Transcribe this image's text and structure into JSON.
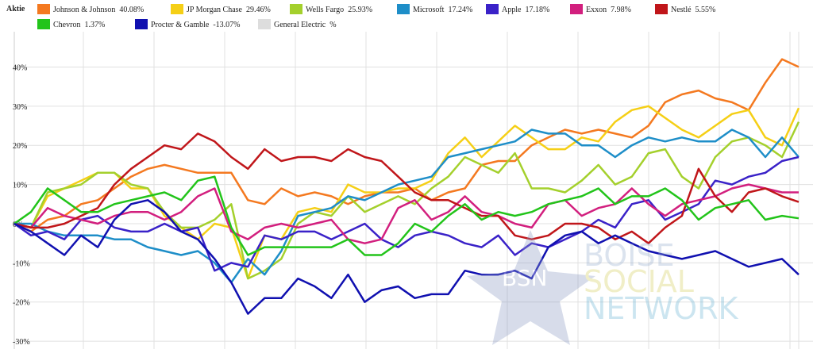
{
  "chart_data": {
    "type": "line",
    "legend_title": "Aktie",
    "ylim": [
      -32,
      49
    ],
    "yticks": [
      {
        "value": -30,
        "label": "-30%"
      },
      {
        "value": -20,
        "label": "-20%"
      },
      {
        "value": -10,
        "label": "-10%"
      },
      {
        "value": 0,
        "label": "0%"
      },
      {
        "value": 10,
        "label": "10%"
      },
      {
        "value": 20,
        "label": "20%"
      },
      {
        "value": 30,
        "label": "30%"
      },
      {
        "value": 40,
        "label": "40%"
      }
    ],
    "grid": true,
    "watermark": {
      "badge": "BSN",
      "line1": "BOISE",
      "line2": "SOCIAL",
      "line3": "NETWORK"
    },
    "series": [
      {
        "name": "Johnson & Johnson",
        "change": {
          "value": 40.08,
          "label": "40.08%"
        },
        "color": "#f47920",
        "values": [
          0,
          -2,
          1,
          2,
          5,
          6,
          9,
          12,
          14,
          15,
          14,
          13,
          13,
          13,
          6,
          5,
          9,
          7,
          8,
          7,
          5,
          7,
          8,
          8,
          9,
          6,
          8,
          9,
          15,
          16,
          16,
          20,
          22,
          24,
          23,
          24,
          23,
          22,
          25,
          31,
          33,
          34,
          32,
          31,
          29,
          36,
          42,
          40
        ]
      },
      {
        "name": "JP Morgan Chase",
        "change": {
          "value": 29.46,
          "label": "29.46%"
        },
        "color": "#f5cf16",
        "values": [
          0,
          -1,
          7,
          9,
          11,
          13,
          13,
          9,
          9,
          2,
          -1,
          -4,
          0,
          -1,
          -14,
          -3,
          -4,
          3,
          4,
          3,
          10,
          8,
          8,
          9,
          9,
          11,
          18,
          22,
          17,
          21,
          25,
          22,
          19,
          19,
          22,
          21,
          26,
          29,
          30,
          27,
          24,
          22,
          25,
          28,
          29,
          22,
          20,
          29.5
        ]
      },
      {
        "name": "Wells Fargo",
        "change": {
          "value": 25.93,
          "label": "25.93%"
        },
        "color": "#a4d02c",
        "values": [
          0,
          -1,
          8,
          9,
          10,
          13,
          13,
          10,
          9,
          3,
          -1,
          -1,
          1,
          5,
          -14,
          -12,
          -9,
          0,
          3,
          2,
          7,
          3,
          5,
          7,
          5,
          9,
          12,
          17,
          15,
          13,
          18,
          9,
          9,
          8,
          11,
          15,
          10,
          12,
          18,
          19,
          12,
          9,
          17,
          21,
          22,
          20,
          17,
          26
        ]
      },
      {
        "name": "Microsoft",
        "change": {
          "value": 17.24,
          "label": "17.24%"
        },
        "color": "#1e8ec8",
        "values": [
          0,
          0,
          -2,
          -3,
          -3,
          -3,
          -4,
          -4,
          -6,
          -7,
          -8,
          -7,
          -10,
          -15,
          -9,
          -13,
          -7,
          2,
          3,
          4,
          7,
          6,
          8,
          10,
          11,
          12,
          17,
          18,
          19,
          20,
          21,
          24,
          23,
          23,
          20,
          20,
          17,
          20,
          22,
          21,
          22,
          21,
          21,
          24,
          22,
          17,
          22,
          17
        ]
      },
      {
        "name": "Apple",
        "change": {
          "value": 17.18,
          "label": "17.18%"
        },
        "color": "#3a22c8",
        "values": [
          0,
          -3,
          -2,
          -4,
          1,
          2,
          -1,
          -2,
          -2,
          0,
          -2,
          -1,
          -12,
          -10,
          -11,
          -3,
          -4,
          -2,
          -2,
          -4,
          -2,
          0,
          -4,
          -6,
          -3,
          -2,
          -3,
          -5,
          -6,
          -3,
          -8,
          -5,
          -6,
          -4,
          -2,
          1,
          -1,
          5,
          6,
          1,
          3,
          5,
          11,
          10,
          12,
          13,
          16,
          17
        ]
      },
      {
        "name": "Exxon",
        "change": {
          "value": 7.98,
          "label": "7.98%"
        },
        "color": "#d21f7e",
        "values": [
          0,
          -1,
          4,
          2,
          1,
          0,
          2,
          3,
          3,
          1,
          3,
          7,
          9,
          -2,
          -4,
          -1,
          0,
          -1,
          0,
          1,
          -4,
          -5,
          -4,
          4,
          6,
          1,
          3,
          7,
          3,
          2,
          0,
          -1,
          5,
          6,
          2,
          4,
          5,
          9,
          5,
          2,
          5,
          6,
          7,
          9,
          10,
          9,
          8,
          8
        ]
      },
      {
        "name": "Nestlé",
        "change": {
          "value": 5.55,
          "label": "5.55%"
        },
        "color": "#c0161a",
        "values": [
          0,
          -1,
          -1,
          0,
          2,
          4,
          10,
          14,
          17,
          20,
          19,
          23,
          21,
          17,
          14,
          19,
          16,
          17,
          17,
          16,
          19,
          17,
          16,
          12,
          8,
          6,
          6,
          4,
          2,
          2,
          -3,
          -4,
          -3,
          0,
          0,
          -1,
          -4,
          -2,
          -5,
          -1,
          2,
          14,
          7,
          3,
          8,
          9,
          7,
          5.55
        ]
      },
      {
        "name": "Chevron",
        "change": {
          "value": 1.37,
          "label": "1.37%"
        },
        "color": "#22c41a",
        "values": [
          0,
          3,
          9,
          6,
          3,
          3,
          5,
          6,
          7,
          8,
          6,
          11,
          12,
          -1,
          -8,
          -6,
          -6,
          -6,
          -6,
          -6,
          -4,
          -8,
          -8,
          -5,
          0,
          -2,
          2,
          5,
          1,
          3,
          2,
          3,
          5,
          6,
          7,
          9,
          5,
          7,
          7,
          9,
          6,
          1,
          4,
          5,
          6,
          1,
          2,
          1.37
        ]
      },
      {
        "name": "Procter & Gamble",
        "change": {
          "value": -13.07,
          "label": "-13.07%"
        },
        "color": "#1010b0",
        "values": [
          0,
          -2,
          -5,
          -8,
          -3,
          -6,
          1,
          5,
          6,
          3,
          -2,
          -4,
          -9,
          -15,
          -23,
          -19,
          -19,
          -14,
          -16,
          -19,
          -13,
          -20,
          -17,
          -16,
          -19,
          -18,
          -18,
          -12,
          -13,
          -13,
          -12,
          -14,
          -6,
          -3,
          -2,
          -5,
          -3,
          -5,
          -7,
          -8,
          -9,
          -8,
          -7,
          -9,
          -11,
          -10,
          -9,
          -13
        ]
      },
      {
        "name": "General Electric",
        "change": {
          "value": null,
          "label": "%"
        },
        "color": "#dddddd",
        "values": []
      }
    ]
  }
}
